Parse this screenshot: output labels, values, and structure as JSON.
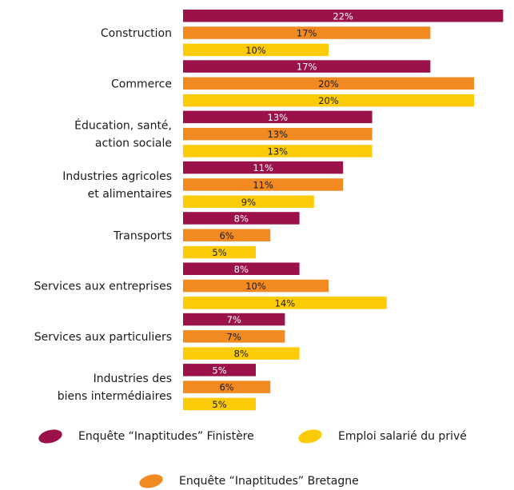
{
  "chart_data": {
    "type": "bar",
    "orientation": "horizontal",
    "categories": [
      [
        "Construction"
      ],
      [
        "Commerce"
      ],
      [
        "Éducation, santé,",
        "action sociale"
      ],
      [
        "Industries agricoles",
        "et alimentaires"
      ],
      [
        "Transports"
      ],
      [
        "Services aux entreprises"
      ],
      [
        "Services aux particuliers"
      ],
      [
        "Industries des",
        "biens intermédiaires"
      ]
    ],
    "series": [
      {
        "name": "Enquête “Inaptitudes” Finistère",
        "color": "#9b1149",
        "label_color": "#ffffff",
        "values": [
          22,
          17,
          13,
          11,
          8,
          8,
          7,
          5
        ],
        "labels": [
          "22%",
          "17%",
          "13%",
          "11%",
          "8%",
          "8%",
          "7%",
          "5%"
        ]
      },
      {
        "name": "Enquête “Inaptitudes” Bretagne",
        "color": "#f18a21",
        "label_color": "#1a1a1a",
        "values": [
          17,
          20,
          13,
          11,
          6,
          10,
          7,
          6
        ],
        "labels": [
          "17%",
          "20%",
          "13%",
          "11%",
          "6%",
          "10%",
          "7%",
          "6%"
        ]
      },
      {
        "name": "Emploi salarié du privé",
        "color": "#fccb08",
        "label_color": "#1a1a1a",
        "values": [
          10,
          20,
          13,
          9,
          5,
          14,
          8,
          5
        ],
        "labels": [
          "10%",
          "20%",
          "13%",
          "9%",
          "5%",
          "14%",
          "8%",
          "5%"
        ]
      }
    ],
    "xlim": [
      0,
      22
    ],
    "grid": false,
    "legend_position": "bottom"
  },
  "legend": {
    "items": [
      {
        "label": "Enquête “Inaptitudes” Finistère",
        "color": "#9b1149"
      },
      {
        "label": "Emploi salarié du privé",
        "color": "#fccb08"
      },
      {
        "label": "Enquête “Inaptitudes” Bretagne",
        "color": "#f18a21"
      }
    ]
  }
}
